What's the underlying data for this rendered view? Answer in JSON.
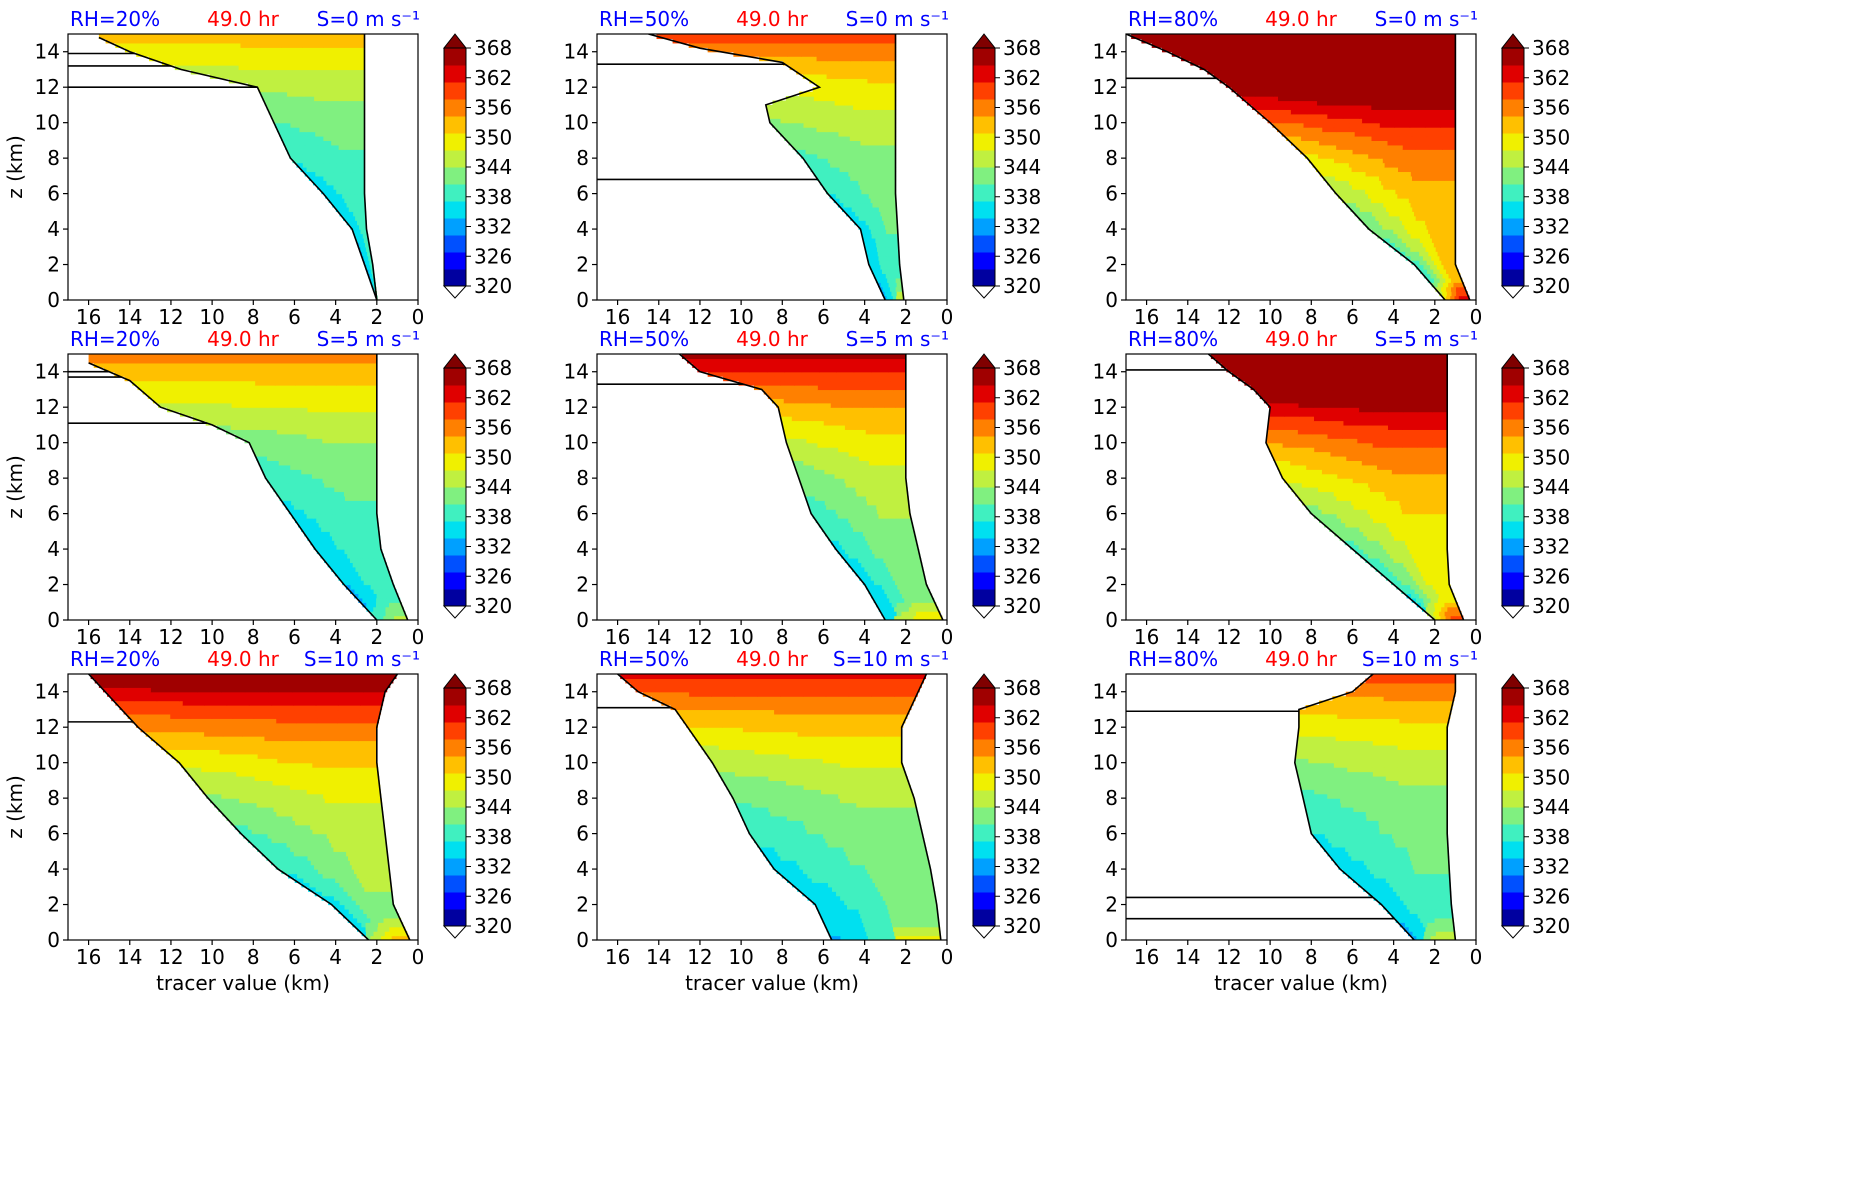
{
  "figure": {
    "colorbar": {
      "ticks": [
        "368",
        "362",
        "356",
        "350",
        "344",
        "338",
        "332",
        "326",
        "320"
      ],
      "levels": [
        320,
        368
      ],
      "colors": [
        "#0000a0",
        "#0000ff",
        "#0050ff",
        "#00a0ff",
        "#00e0f0",
        "#40f0c0",
        "#80f080",
        "#c0f040",
        "#f0f000",
        "#ffc000",
        "#ff8000",
        "#ff4000",
        "#e00000",
        "#a00000"
      ]
    },
    "xticks": [
      "16",
      "14",
      "12",
      "10",
      "8",
      "6",
      "4",
      "2",
      "0"
    ],
    "yticks": [
      "0",
      "2",
      "4",
      "6",
      "8",
      "10",
      "12",
      "14"
    ],
    "xlabel": "tracer value (km)",
    "ylabel": "z (km)",
    "title_color_rh": "#0000ff",
    "title_color_time": "#ff0000",
    "title_color_s": "#0000ff"
  },
  "chart_data": [
    {
      "type": "heatmap",
      "rh": "RH=20%",
      "time": "49.0 hr",
      "shear": "S=0 m s⁻¹",
      "xlim": [
        17,
        0
      ],
      "ylim": [
        0,
        15
      ],
      "profile": [
        [
          0,
          2.0
        ],
        [
          2,
          2.6
        ],
        [
          4,
          3.2
        ],
        [
          6,
          4.6
        ],
        [
          8,
          6.2
        ],
        [
          10,
          7.0
        ],
        [
          12,
          7.8
        ],
        [
          13,
          11.5
        ],
        [
          14,
          14.0
        ],
        [
          14.8,
          15.5
        ]
      ],
      "right": [
        [
          0,
          2.0
        ],
        [
          2,
          2.2
        ],
        [
          4,
          2.5
        ],
        [
          6,
          2.6
        ],
        [
          8,
          2.6
        ],
        [
          10,
          2.6
        ],
        [
          12,
          2.6
        ],
        [
          14,
          2.6
        ],
        [
          15,
          2.6
        ]
      ],
      "lines": [
        12.0,
        13.2,
        13.9
      ],
      "tmax": 0.35
    },
    {
      "type": "heatmap",
      "rh": "RH=50%",
      "time": "49.0 hr",
      "shear": "S=0 m s⁻¹",
      "xlim": [
        17,
        0
      ],
      "ylim": [
        0,
        15
      ],
      "profile": [
        [
          0,
          3.0
        ],
        [
          2,
          3.8
        ],
        [
          4,
          4.2
        ],
        [
          6,
          5.8
        ],
        [
          8,
          7.0
        ],
        [
          10,
          8.6
        ],
        [
          11,
          8.8
        ],
        [
          12,
          6.2
        ],
        [
          13.4,
          8.0
        ],
        [
          14.2,
          12.0
        ],
        [
          15,
          14.5
        ]
      ],
      "right": [
        [
          0,
          2.1
        ],
        [
          2,
          2.3
        ],
        [
          4,
          2.4
        ],
        [
          6,
          2.5
        ],
        [
          8,
          2.5
        ],
        [
          10,
          2.5
        ],
        [
          12,
          2.5
        ],
        [
          14,
          2.5
        ],
        [
          15,
          2.5
        ]
      ],
      "lines": [
        6.8,
        13.3
      ],
      "tmax": 0.45
    },
    {
      "type": "heatmap",
      "rh": "RH=80%",
      "time": "49.0 hr",
      "shear": "S=0 m s⁻¹",
      "xlim": [
        17,
        0
      ],
      "ylim": [
        0,
        15
      ],
      "profile": [
        [
          0,
          1.5
        ],
        [
          2,
          3.0
        ],
        [
          4,
          5.2
        ],
        [
          6,
          6.8
        ],
        [
          8,
          8.2
        ],
        [
          10,
          10.0
        ],
        [
          12,
          12.0
        ],
        [
          13,
          13.2
        ],
        [
          14,
          15.0
        ],
        [
          15,
          17.0
        ]
      ],
      "right": [
        [
          0,
          0.3
        ],
        [
          2,
          1.0
        ],
        [
          4,
          1.0
        ],
        [
          6,
          1.0
        ],
        [
          8,
          1.0
        ],
        [
          10,
          1.0
        ],
        [
          12,
          1.0
        ],
        [
          14,
          1.0
        ],
        [
          15,
          1.0
        ]
      ],
      "lines": [
        12.5
      ],
      "tmax": 0.9
    },
    {
      "type": "heatmap",
      "rh": "RH=20%",
      "time": "49.0 hr",
      "shear": "S=5 m s⁻¹",
      "xlim": [
        17,
        0
      ],
      "ylim": [
        0,
        15
      ],
      "profile": [
        [
          0,
          2.0
        ],
        [
          2,
          3.6
        ],
        [
          4,
          5.0
        ],
        [
          6,
          6.2
        ],
        [
          8,
          7.4
        ],
        [
          10,
          8.2
        ],
        [
          11,
          10.0
        ],
        [
          12,
          12.5
        ],
        [
          13.5,
          14.0
        ],
        [
          14.5,
          16.0
        ]
      ],
      "right": [
        [
          0,
          0.5
        ],
        [
          2,
          1.2
        ],
        [
          4,
          1.8
        ],
        [
          6,
          2.0
        ],
        [
          8,
          2.0
        ],
        [
          10,
          2.0
        ],
        [
          12,
          2.0
        ],
        [
          14,
          2.0
        ],
        [
          15,
          2.0
        ]
      ],
      "lines": [
        11.1,
        13.7,
        14.0
      ],
      "tmax": 0.4
    },
    {
      "type": "heatmap",
      "rh": "RH=50%",
      "time": "49.0 hr",
      "shear": "S=5 m s⁻¹",
      "xlim": [
        17,
        0
      ],
      "ylim": [
        0,
        15
      ],
      "profile": [
        [
          0,
          3.0
        ],
        [
          2,
          4.0
        ],
        [
          4,
          5.4
        ],
        [
          6,
          6.6
        ],
        [
          8,
          7.2
        ],
        [
          10,
          7.8
        ],
        [
          12,
          8.2
        ],
        [
          13,
          9.0
        ],
        [
          14,
          12.0
        ],
        [
          15,
          13.0
        ]
      ],
      "right": [
        [
          0,
          0.2
        ],
        [
          2,
          1.0
        ],
        [
          4,
          1.4
        ],
        [
          6,
          1.8
        ],
        [
          8,
          2.0
        ],
        [
          10,
          2.0
        ],
        [
          12,
          2.0
        ],
        [
          14,
          2.0
        ],
        [
          15,
          2.0
        ]
      ],
      "lines": [
        13.3
      ],
      "tmax": 0.55
    },
    {
      "type": "heatmap",
      "rh": "RH=80%",
      "time": "49.0 hr",
      "shear": "S=5 m s⁻¹",
      "xlim": [
        17,
        0
      ],
      "ylim": [
        0,
        15
      ],
      "profile": [
        [
          0,
          2.0
        ],
        [
          2,
          4.0
        ],
        [
          4,
          6.0
        ],
        [
          6,
          8.0
        ],
        [
          8,
          9.4
        ],
        [
          10,
          10.2
        ],
        [
          12,
          10.0
        ],
        [
          13,
          10.8
        ],
        [
          14,
          12.0
        ],
        [
          15,
          13.0
        ]
      ],
      "right": [
        [
          0,
          0.6
        ],
        [
          2,
          1.3
        ],
        [
          4,
          1.4
        ],
        [
          6,
          1.4
        ],
        [
          8,
          1.4
        ],
        [
          10,
          1.4
        ],
        [
          12,
          1.4
        ],
        [
          14,
          1.4
        ],
        [
          15,
          1.4
        ]
      ],
      "lines": [
        14.1
      ],
      "tmax": 0.8
    },
    {
      "type": "heatmap",
      "rh": "RH=20%",
      "time": "49.0 hr",
      "shear": "S=10 m s⁻¹",
      "xlim": [
        17,
        0
      ],
      "ylim": [
        0,
        15
      ],
      "profile": [
        [
          0,
          2.4
        ],
        [
          2,
          4.2
        ],
        [
          4,
          6.8
        ],
        [
          6,
          8.6
        ],
        [
          8,
          10.2
        ],
        [
          10,
          11.6
        ],
        [
          12,
          13.6
        ],
        [
          14,
          15.2
        ],
        [
          15,
          16.0
        ]
      ],
      "right": [
        [
          0,
          0.4
        ],
        [
          2,
          1.2
        ],
        [
          4,
          1.4
        ],
        [
          6,
          1.6
        ],
        [
          8,
          1.8
        ],
        [
          10,
          2.0
        ],
        [
          12,
          2.0
        ],
        [
          14,
          1.6
        ],
        [
          15,
          1.0
        ]
      ],
      "lines": [
        12.3
      ],
      "tmax": 0.6
    },
    {
      "type": "heatmap",
      "rh": "RH=50%",
      "time": "49.0 hr",
      "shear": "S=10 m s⁻¹",
      "xlim": [
        17,
        0
      ],
      "ylim": [
        0,
        15
      ],
      "profile": [
        [
          0,
          5.6
        ],
        [
          2,
          6.4
        ],
        [
          4,
          8.4
        ],
        [
          6,
          9.6
        ],
        [
          8,
          10.4
        ],
        [
          10,
          11.4
        ],
        [
          12,
          12.6
        ],
        [
          13,
          13.2
        ],
        [
          14,
          15.0
        ],
        [
          15,
          16.0
        ]
      ],
      "right": [
        [
          0,
          0.3
        ],
        [
          2,
          0.5
        ],
        [
          4,
          0.8
        ],
        [
          6,
          1.2
        ],
        [
          8,
          1.6
        ],
        [
          10,
          2.2
        ],
        [
          12,
          2.2
        ],
        [
          14,
          1.4
        ],
        [
          15,
          1.0
        ]
      ],
      "lines": [
        13.1
      ],
      "tmax": 0.5
    },
    {
      "type": "heatmap",
      "rh": "RH=80%",
      "time": "49.0 hr",
      "shear": "S=10 m s⁻¹",
      "xlim": [
        17,
        0
      ],
      "ylim": [
        0,
        15
      ],
      "profile": [
        [
          0,
          3.0
        ],
        [
          2,
          4.6
        ],
        [
          4,
          6.6
        ],
        [
          6,
          8.0
        ],
        [
          8,
          8.4
        ],
        [
          10,
          8.8
        ],
        [
          12,
          8.6
        ],
        [
          13,
          8.6
        ],
        [
          14,
          6.0
        ],
        [
          15,
          5.0
        ]
      ],
      "right": [
        [
          0,
          1.0
        ],
        [
          2,
          1.2
        ],
        [
          4,
          1.3
        ],
        [
          6,
          1.4
        ],
        [
          8,
          1.4
        ],
        [
          10,
          1.4
        ],
        [
          12,
          1.4
        ],
        [
          14,
          1.0
        ],
        [
          15,
          1.0
        ]
      ],
      "lines": [
        1.2,
        2.4,
        12.9
      ],
      "tmax": 0.45
    }
  ]
}
